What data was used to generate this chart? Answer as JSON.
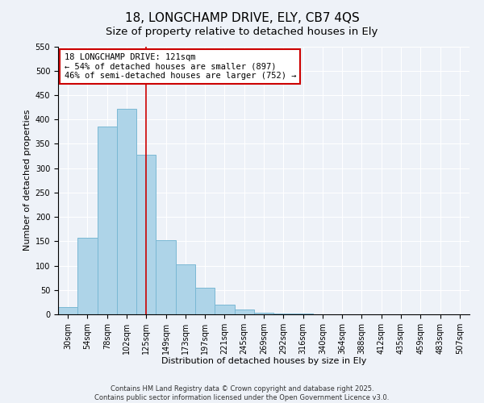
{
  "title": "18, LONGCHAMP DRIVE, ELY, CB7 4QS",
  "subtitle": "Size of property relative to detached houses in Ely",
  "xlabel": "Distribution of detached houses by size in Ely",
  "ylabel": "Number of detached properties",
  "bar_labels": [
    "30sqm",
    "54sqm",
    "78sqm",
    "102sqm",
    "125sqm",
    "149sqm",
    "173sqm",
    "197sqm",
    "221sqm",
    "245sqm",
    "269sqm",
    "292sqm",
    "316sqm",
    "340sqm",
    "364sqm",
    "388sqm",
    "412sqm",
    "435sqm",
    "459sqm",
    "483sqm",
    "507sqm"
  ],
  "bar_values": [
    15,
    157,
    385,
    422,
    328,
    153,
    102,
    54,
    20,
    10,
    3,
    1,
    1,
    0,
    0,
    0,
    0,
    0,
    0,
    0,
    0
  ],
  "bar_color": "#aed4e8",
  "bar_edge_color": "#7ab8d4",
  "vline_x": 4,
  "vline_color": "#cc0000",
  "ylim": [
    0,
    550
  ],
  "yticks": [
    0,
    50,
    100,
    150,
    200,
    250,
    300,
    350,
    400,
    450,
    500,
    550
  ],
  "annotation_title": "18 LONGCHAMP DRIVE: 121sqm",
  "annotation_line1": "← 54% of detached houses are smaller (897)",
  "annotation_line2": "46% of semi-detached houses are larger (752) →",
  "annotation_box_color": "#ffffff",
  "annotation_box_edge": "#cc0000",
  "footer1": "Contains HM Land Registry data © Crown copyright and database right 2025.",
  "footer2": "Contains public sector information licensed under the Open Government Licence v3.0.",
  "bg_color": "#eef2f8",
  "title_fontsize": 11,
  "subtitle_fontsize": 9.5,
  "axis_label_fontsize": 8,
  "tick_fontsize": 7,
  "annotation_fontsize": 7.5,
  "footer_fontsize": 6
}
